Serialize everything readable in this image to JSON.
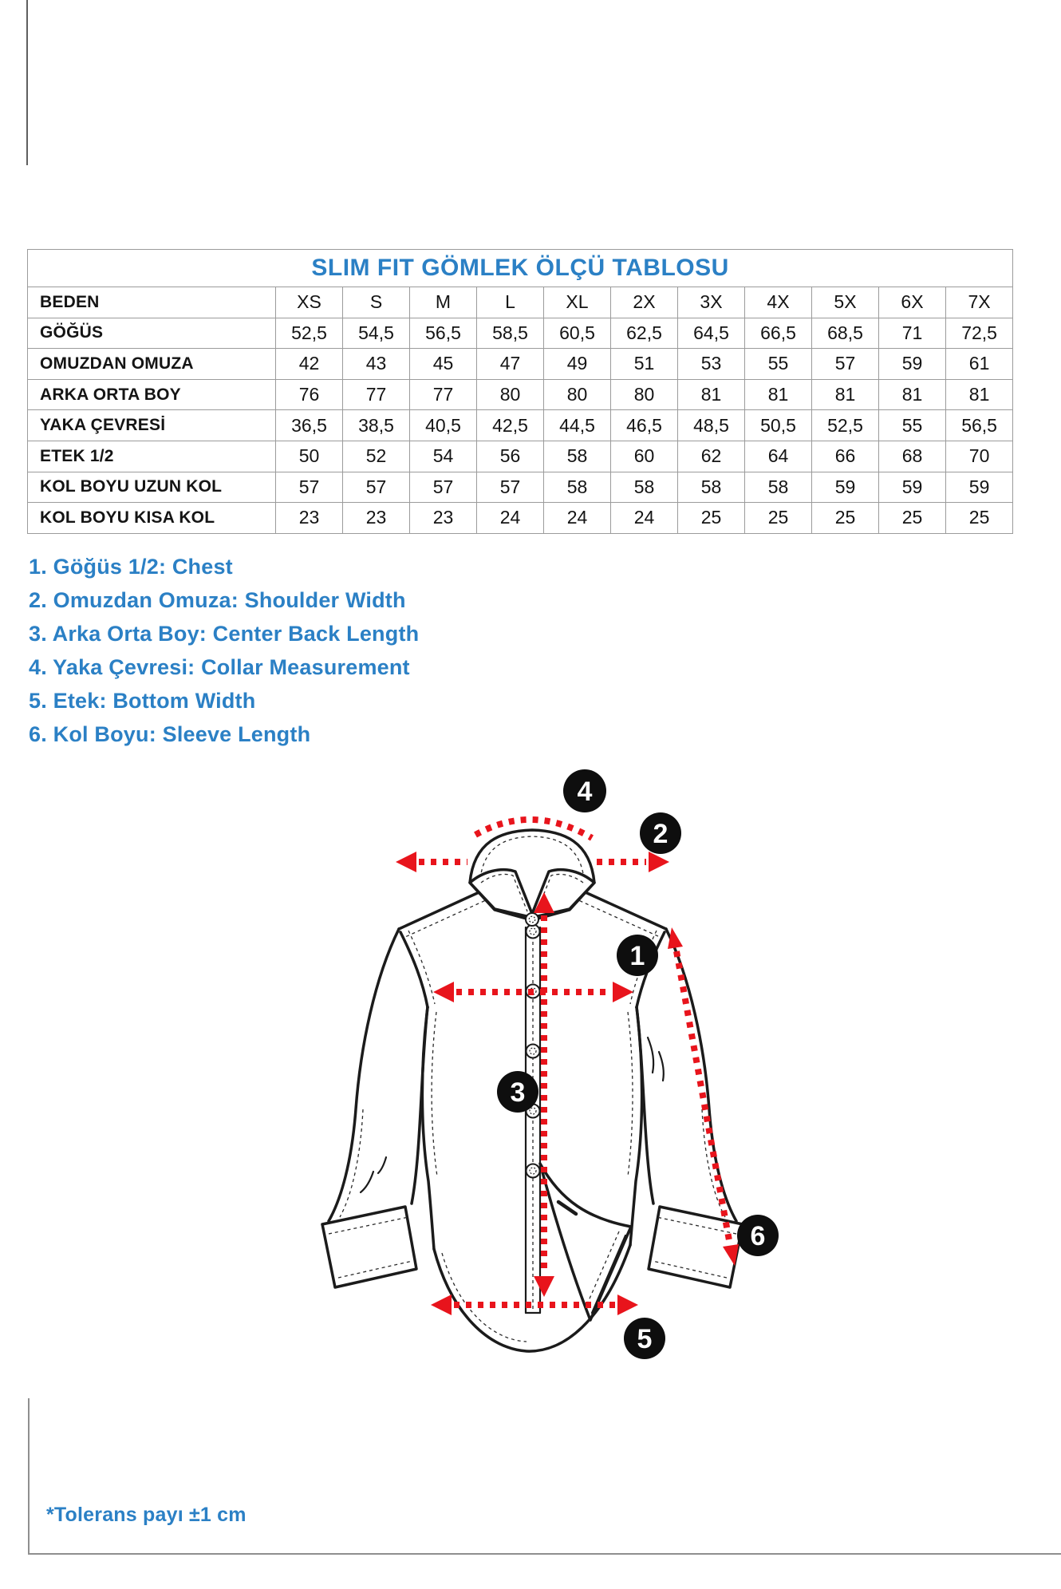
{
  "table": {
    "title": "SLIM FIT GÖMLEK ÖLÇÜ TABLOSU",
    "header": [
      "BEDEN",
      "XS",
      "S",
      "M",
      "L",
      "XL",
      "2X",
      "3X",
      "4X",
      "5X",
      "6X",
      "7X"
    ],
    "rows": [
      {
        "label": "GÖĞÜS",
        "values": [
          "52,5",
          "54,5",
          "56,5",
          "58,5",
          "60,5",
          "62,5",
          "64,5",
          "66,5",
          "68,5",
          "71",
          "72,5"
        ]
      },
      {
        "label": "OMUZDAN OMUZA",
        "values": [
          "42",
          "43",
          "45",
          "47",
          "49",
          "51",
          "53",
          "55",
          "57",
          "59",
          "61"
        ]
      },
      {
        "label": "ARKA ORTA BOY",
        "values": [
          "76",
          "77",
          "77",
          "80",
          "80",
          "80",
          "81",
          "81",
          "81",
          "81",
          "81"
        ]
      },
      {
        "label": "YAKA ÇEVRESİ",
        "values": [
          "36,5",
          "38,5",
          "40,5",
          "42,5",
          "44,5",
          "46,5",
          "48,5",
          "50,5",
          "52,5",
          "55",
          "56,5"
        ]
      },
      {
        "label": "ETEK 1/2",
        "values": [
          "50",
          "52",
          "54",
          "56",
          "58",
          "60",
          "62",
          "64",
          "66",
          "68",
          "70"
        ]
      },
      {
        "label": "KOL BOYU UZUN KOL",
        "values": [
          "57",
          "57",
          "57",
          "57",
          "58",
          "58",
          "58",
          "58",
          "59",
          "59",
          "59"
        ]
      },
      {
        "label": "KOL BOYU KISA KOL",
        "values": [
          "23",
          "23",
          "23",
          "24",
          "24",
          "24",
          "25",
          "25",
          "25",
          "25",
          "25"
        ]
      }
    ]
  },
  "legend": {
    "items": [
      "1. Göğüs 1/2: Chest",
      "2. Omuzdan Omuza: Shoulder Width",
      "3. Arka Orta Boy: Center Back Length",
      "4. Yaka Çevresi: Collar Measurement",
      "5. Etek: Bottom Width",
      "6. Kol Boyu: Sleeve Length"
    ]
  },
  "diagram": {
    "markers": [
      "1",
      "2",
      "3",
      "4",
      "5",
      "6"
    ]
  },
  "footnote": "*Tolerans payı ±1 cm",
  "colors": {
    "accent_blue": "#2b80c5",
    "arrow_red": "#e8141c",
    "marker_black": "#0e0e0e",
    "grid_gray": "#9b9b9b"
  }
}
